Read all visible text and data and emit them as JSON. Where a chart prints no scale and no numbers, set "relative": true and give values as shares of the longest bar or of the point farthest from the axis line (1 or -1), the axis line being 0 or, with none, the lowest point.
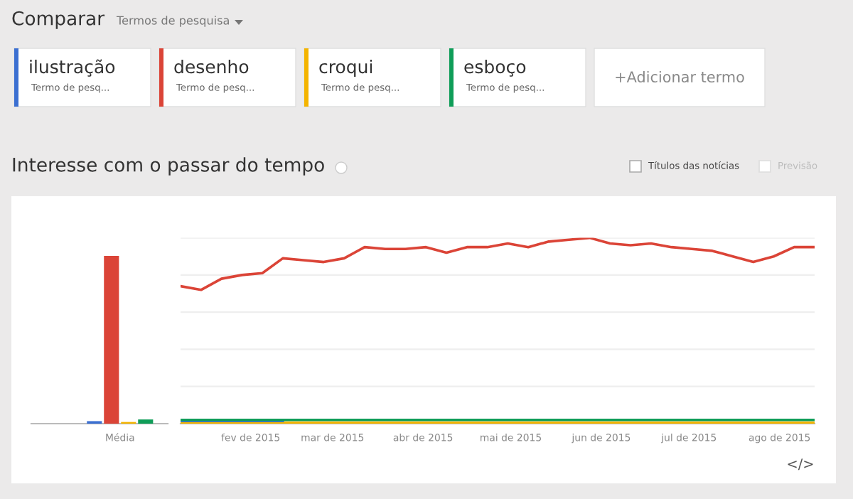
{
  "chart_data": [
    {
      "type": "bar",
      "title": "Interesse com o passar do tempo",
      "relative": true,
      "legend": "top",
      "grid": false,
      "categories": [
        "Média"
      ],
      "series": [
        {
          "name": "ilustração",
          "color": "#3b6fd1",
          "values": [
            0.015
          ]
        },
        {
          "name": "desenho",
          "color": "#db4437",
          "values": [
            1
          ]
        },
        {
          "name": "croqui",
          "color": "#f4b400",
          "values": [
            0.01
          ]
        },
        {
          "name": "esboço",
          "color": "#0f9d58",
          "values": [
            0.025
          ]
        }
      ],
      "annotations": [
        "Comparar",
        "Termos de pesquisa",
        "Termo de pesq...",
        "Termo de pesq...",
        "Termo de pesq...",
        "Termo de pesq...",
        "+Adicionar termo",
        "Títulos das notícias",
        "Previsão",
        "</>"
      ]
    },
    {
      "type": "line",
      "relative": true,
      "legend": false,
      "grid": "y",
      "x": [
        "2015-01-08",
        "2015-01-15",
        "2015-01-22",
        "2015-01-29",
        "2015-02-05",
        "2015-02-12",
        "2015-02-19",
        "2015-02-26",
        "2015-03-05",
        "2015-03-12",
        "2015-03-19",
        "2015-03-26",
        "2015-04-02",
        "2015-04-09",
        "2015-04-16",
        "2015-04-23",
        "2015-04-30",
        "2015-05-07",
        "2015-05-14",
        "2015-05-21",
        "2015-05-28",
        "2015-06-04",
        "2015-06-11",
        "2015-06-18",
        "2015-06-25",
        "2015-07-02",
        "2015-07-09",
        "2015-07-16",
        "2015-07-23",
        "2015-07-30",
        "2015-08-06",
        "2015-08-13"
      ],
      "xlim": [
        "2015-01-08",
        "2015-08-13"
      ],
      "xticks": [
        {
          "value": "2015-02-01",
          "label": "fev de 2015"
        },
        {
          "value": "2015-03-01",
          "label": "mar de 2015"
        },
        {
          "value": "2015-04-01",
          "label": "abr de 2015"
        },
        {
          "value": "2015-05-01",
          "label": "mai de 2015"
        },
        {
          "value": "2015-06-01",
          "label": "jun de 2015"
        },
        {
          "value": "2015-07-01",
          "label": "jul de 2015"
        },
        {
          "value": "2015-08-01",
          "label": "ago de 2015"
        }
      ],
      "series": [
        {
          "color": "#f4b400",
          "values": [
            0.005,
            0.005,
            0.005,
            0.005,
            0.005,
            0.005,
            0.005,
            0.005,
            0.005,
            0.005,
            0.005,
            0.005,
            0.005,
            0.005,
            0.005,
            0.005,
            0.005,
            0.005,
            0.005,
            0.005,
            0.005,
            0.005,
            0.005,
            0.005,
            0.005,
            0.005,
            0.005,
            0.005,
            0.005,
            0.005,
            0.005,
            0.005
          ]
        },
        {
          "color": "#3b6fd1",
          "values": [
            0.015,
            0.015,
            0.015,
            0.015,
            0.015,
            0.015,
            null,
            null,
            null,
            null,
            null,
            null,
            null,
            null,
            null,
            null,
            null,
            null,
            null,
            null,
            null,
            null,
            null,
            null,
            null,
            null,
            null,
            null,
            null,
            null,
            null,
            null
          ]
        },
        {
          "color": "#0f9d58",
          "values": [
            0.02,
            0.02,
            0.02,
            0.02,
            0.02,
            0.02,
            0.02,
            0.02,
            0.02,
            0.02,
            0.02,
            0.02,
            0.02,
            0.02,
            0.02,
            0.02,
            0.02,
            0.02,
            0.02,
            0.02,
            0.02,
            0.02,
            0.02,
            0.02,
            0.02,
            0.02,
            0.02,
            0.02,
            0.02,
            0.02,
            0.02,
            0.02
          ]
        },
        {
          "color": "#db4437",
          "values": [
            0.74,
            0.72,
            0.78,
            0.8,
            0.81,
            0.89,
            0.88,
            0.87,
            0.89,
            0.95,
            0.94,
            0.94,
            0.95,
            0.92,
            0.95,
            0.95,
            0.97,
            0.95,
            0.98,
            0.99,
            1.0,
            0.97,
            0.96,
            0.97,
            0.95,
            0.94,
            0.93,
            0.9,
            0.87,
            0.9,
            0.95,
            0.95
          ]
        }
      ]
    }
  ]
}
